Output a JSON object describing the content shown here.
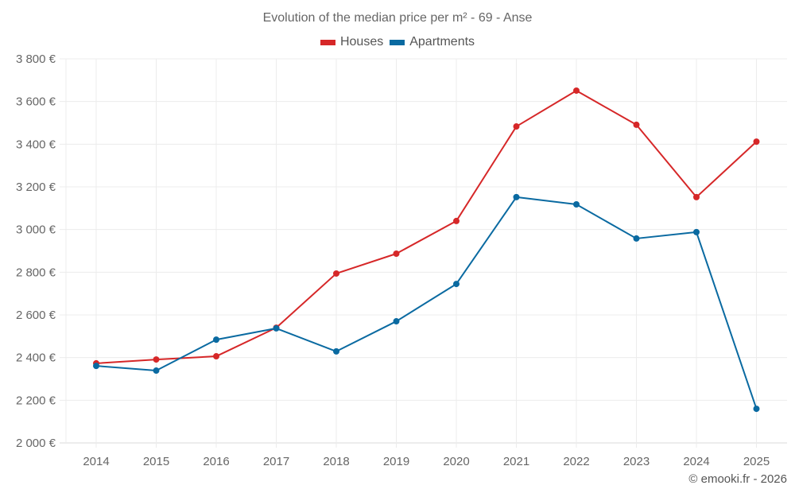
{
  "chart_data": {
    "type": "line",
    "title": "Evolution of the median price per m² - 69 - Anse",
    "xlabel": "",
    "ylabel": "",
    "x": [
      "2014",
      "2015",
      "2016",
      "2017",
      "2018",
      "2019",
      "2020",
      "2021",
      "2022",
      "2023",
      "2024",
      "2025"
    ],
    "ylim": [
      2000,
      3800
    ],
    "yticks": [
      2000,
      2200,
      2400,
      2600,
      2800,
      3000,
      3200,
      3400,
      3600,
      3800
    ],
    "ytick_labels": [
      "2 000 €",
      "2 200 €",
      "2 400 €",
      "2 600 €",
      "2 800 €",
      "3 000 €",
      "3 200 €",
      "3 400 €",
      "3 600 €",
      "3 800 €"
    ],
    "grid": true,
    "legend_position": "top-center",
    "series": [
      {
        "name": "Houses",
        "color": "#d62728",
        "values": [
          2373,
          2391,
          2406,
          2540,
          2794,
          2887,
          3040,
          3483,
          3651,
          3491,
          3152,
          3412
        ]
      },
      {
        "name": "Apartments",
        "color": "#0a6aa1",
        "values": [
          2361,
          2339,
          2484,
          2537,
          2429,
          2570,
          2745,
          3152,
          3118,
          2958,
          2988,
          2160
        ]
      }
    ],
    "credit": "© emooki.fr - 2026"
  }
}
